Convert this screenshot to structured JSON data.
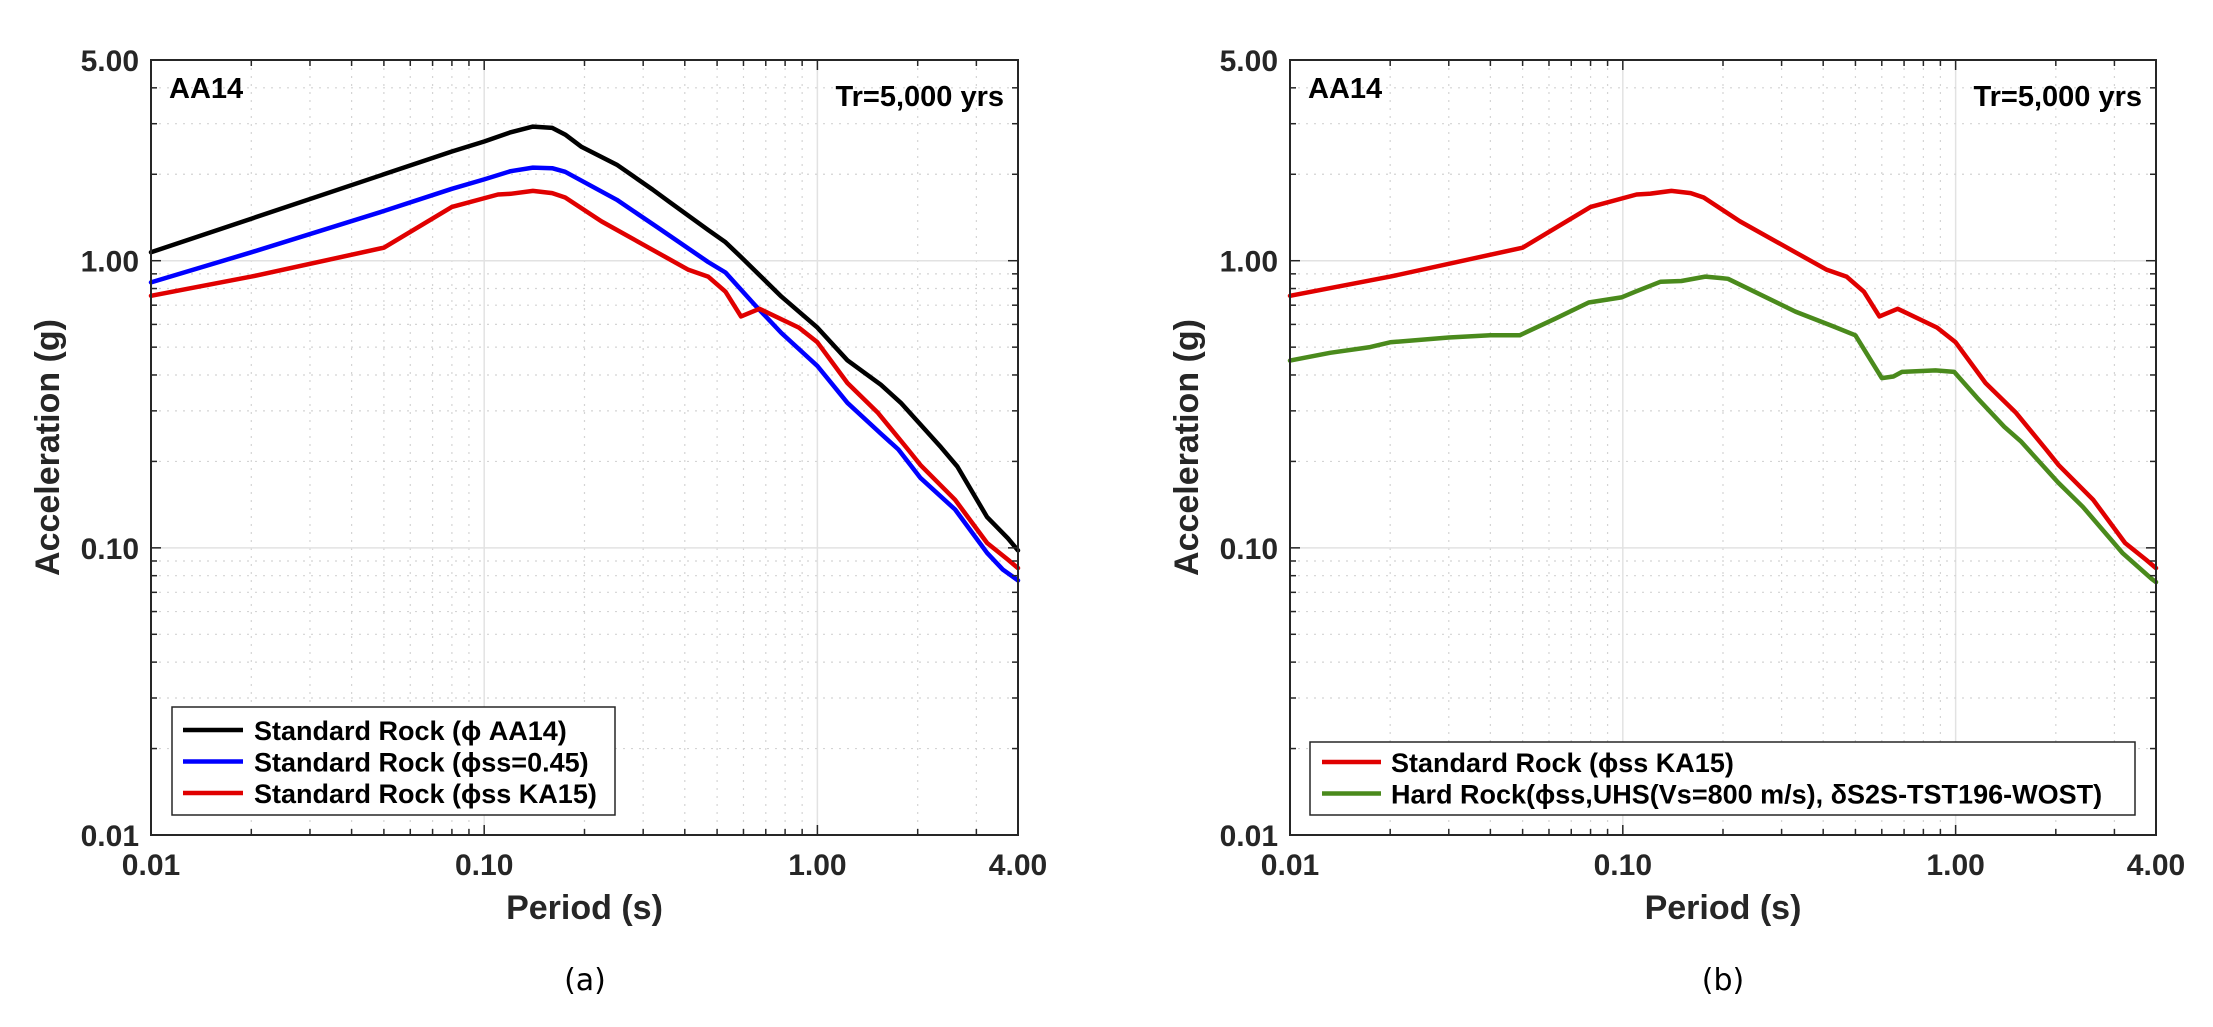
{
  "figure": {
    "panels": [
      {
        "caption": "(a)"
      },
      {
        "caption": "(b)"
      }
    ]
  },
  "chart_data": [
    {
      "type": "line",
      "panel": "(a)",
      "title": "",
      "annotations": {
        "top_left": "AA14",
        "top_right": "Tr=5,000 yrs"
      },
      "xlabel": "Period (s)",
      "ylabel": "Acceleration (g)",
      "xscale": "log",
      "yscale": "log",
      "xlim": [
        0.01,
        4.0
      ],
      "ylim": [
        0.01,
        5.0
      ],
      "xticks": [
        0.01,
        0.1,
        1.0,
        4.0
      ],
      "xtick_labels": [
        "0.01",
        "0.10",
        "1.00",
        "4.00"
      ],
      "yticks": [
        0.01,
        0.1,
        1.0,
        5.0
      ],
      "ytick_labels": [
        "0.01",
        "0.10",
        "1.00",
        "5.00"
      ],
      "grid": true,
      "legend_position": "bottom-left",
      "series": [
        {
          "name": "Standard Rock (ϕ AA14)",
          "color": "#000000",
          "x": [
            0.01,
            0.02,
            0.05,
            0.08,
            0.1,
            0.12,
            0.14,
            0.16,
            0.175,
            0.196,
            0.25,
            0.32,
            0.36,
            0.47,
            0.53,
            0.59,
            0.78,
            1.0,
            1.23,
            1.55,
            1.78,
            2.35,
            2.63,
            3.23,
            3.73,
            4.0
          ],
          "y": [
            1.07,
            1.4,
            2.0,
            2.4,
            2.6,
            2.8,
            2.93,
            2.9,
            2.75,
            2.49,
            2.16,
            1.77,
            1.6,
            1.28,
            1.16,
            1.03,
            0.75,
            0.585,
            0.45,
            0.37,
            0.32,
            0.224,
            0.192,
            0.128,
            0.108,
            0.098
          ]
        },
        {
          "name": "Standard Rock (ϕss=0.45)",
          "color": "#0000ff",
          "x": [
            0.01,
            0.02,
            0.05,
            0.08,
            0.1,
            0.12,
            0.14,
            0.16,
            0.175,
            0.25,
            0.33,
            0.47,
            0.53,
            0.65,
            0.78,
            1.0,
            1.23,
            1.55,
            1.75,
            2.04,
            2.59,
            3.23,
            3.6,
            4.0
          ],
          "y": [
            0.84,
            1.07,
            1.49,
            1.78,
            1.92,
            2.05,
            2.11,
            2.1,
            2.04,
            1.63,
            1.31,
            0.99,
            0.91,
            0.7,
            0.56,
            0.43,
            0.32,
            0.25,
            0.22,
            0.175,
            0.136,
            0.096,
            0.084,
            0.077
          ]
        },
        {
          "name": "Standard Rock (ϕss KA15)",
          "color": "#e00000",
          "x": [
            0.01,
            0.02,
            0.05,
            0.08,
            0.11,
            0.12,
            0.14,
            0.16,
            0.175,
            0.225,
            0.33,
            0.41,
            0.47,
            0.53,
            0.59,
            0.67,
            0.88,
            1.0,
            1.23,
            1.52,
            1.87,
            2.04,
            2.59,
            3.23,
            3.73,
            4.0
          ],
          "y": [
            0.755,
            0.88,
            1.11,
            1.54,
            1.7,
            1.71,
            1.75,
            1.72,
            1.66,
            1.37,
            1.07,
            0.93,
            0.88,
            0.78,
            0.64,
            0.68,
            0.585,
            0.52,
            0.375,
            0.295,
            0.22,
            0.194,
            0.147,
            0.104,
            0.091,
            0.085
          ]
        }
      ]
    },
    {
      "type": "line",
      "panel": "(b)",
      "title": "",
      "annotations": {
        "top_left": "AA14",
        "top_right": "Tr=5,000 yrs"
      },
      "xlabel": "Period (s)",
      "ylabel": "Acceleration (g)",
      "xscale": "log",
      "yscale": "log",
      "xlim": [
        0.01,
        4.0
      ],
      "ylim": [
        0.01,
        5.0
      ],
      "xticks": [
        0.01,
        0.1,
        1.0,
        4.0
      ],
      "xtick_labels": [
        "0.01",
        "0.10",
        "1.00",
        "4.00"
      ],
      "yticks": [
        0.01,
        0.1,
        1.0,
        5.0
      ],
      "ytick_labels": [
        "0.01",
        "0.10",
        "1.00",
        "5.00"
      ],
      "grid": true,
      "legend_position": "bottom",
      "series": [
        {
          "name": "Standard Rock (ϕss KA15)",
          "color": "#e00000",
          "x": [
            0.01,
            0.02,
            0.05,
            0.08,
            0.11,
            0.12,
            0.14,
            0.16,
            0.175,
            0.225,
            0.33,
            0.41,
            0.47,
            0.53,
            0.59,
            0.67,
            0.88,
            1.0,
            1.23,
            1.52,
            1.87,
            2.04,
            2.59,
            3.23,
            3.73,
            4.0
          ],
          "y": [
            0.755,
            0.88,
            1.11,
            1.54,
            1.7,
            1.71,
            1.75,
            1.72,
            1.66,
            1.37,
            1.07,
            0.93,
            0.88,
            0.78,
            0.64,
            0.68,
            0.585,
            0.52,
            0.375,
            0.295,
            0.22,
            0.194,
            0.147,
            0.104,
            0.091,
            0.085
          ]
        },
        {
          "name": "Hard Rock(ϕss,UHS(Vs=800 m/s), δS2S-TST196-WOST)",
          "color": "#4a8a1c",
          "x": [
            0.01,
            0.0132,
            0.0174,
            0.02,
            0.03,
            0.04,
            0.049,
            0.063,
            0.079,
            0.099,
            0.109,
            0.13,
            0.15,
            0.177,
            0.198,
            0.207,
            0.33,
            0.43,
            0.5,
            0.6,
            0.65,
            0.69,
            0.87,
            0.99,
            1.16,
            1.4,
            1.57,
            2.03,
            2.41,
            3.17,
            3.88,
            4.0
          ],
          "y": [
            0.449,
            0.478,
            0.5,
            0.52,
            0.54,
            0.55,
            0.55,
            0.63,
            0.715,
            0.745,
            0.78,
            0.845,
            0.85,
            0.88,
            0.87,
            0.865,
            0.665,
            0.59,
            0.55,
            0.39,
            0.395,
            0.41,
            0.415,
            0.41,
            0.333,
            0.264,
            0.235,
            0.169,
            0.139,
            0.096,
            0.078,
            0.076
          ]
        }
      ]
    }
  ]
}
